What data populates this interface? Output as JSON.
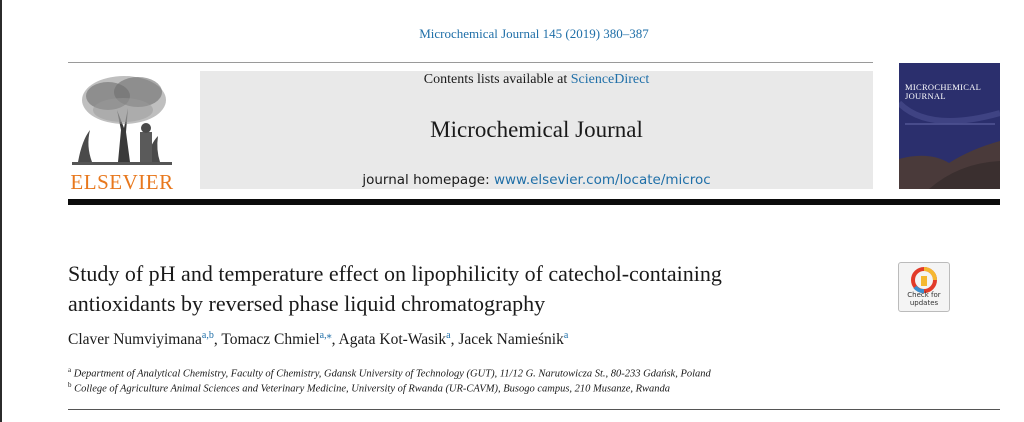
{
  "citation": "Microchemical Journal 145 (2019) 380–387",
  "header": {
    "contents_prefix": "Contents lists available at ",
    "contents_link": "ScienceDirect",
    "journal_title": "Microchemical Journal",
    "homepage_prefix": "journal homepage: ",
    "homepage_url": "www.elsevier.com/locate/microc"
  },
  "publisher": {
    "name": "ELSEVIER"
  },
  "cover": {
    "title_line1": "MICROCHEMICAL",
    "title_line2": "JOURNAL"
  },
  "article": {
    "title_line1": "Study of pH and temperature effect on lipophilicity of catechol-containing",
    "title_line2": "antioxidants by reversed phase liquid chromatography"
  },
  "authors": [
    {
      "name": "Claver Numviyimana",
      "sup": "a,b"
    },
    {
      "name": "Tomacz Chmiel",
      "sup": "a,⁎"
    },
    {
      "name": "Agata Kot-Wasik",
      "sup": "a"
    },
    {
      "name": "Jacek Namieśnik",
      "sup": "a"
    }
  ],
  "affiliations": [
    {
      "mark": "a",
      "text": "Department of Analytical Chemistry, Faculty of Chemistry, Gdansk University of Technology (GUT), 11/12 G. Narutowicza St., 80-233 Gdańsk, Poland"
    },
    {
      "mark": "b",
      "text": "College of Agriculture Animal Sciences and Veterinary Medicine, University of Rwanda (UR-CAVM), Busogo campus, 210 Musanze, Rwanda"
    }
  ],
  "badge": {
    "line1": "Check for",
    "line2": "updates"
  },
  "colors": {
    "link": "#1f6fa8",
    "elsevier": "#e8781d",
    "cover": "#2b2f6d",
    "band": "#e9e9e9"
  }
}
